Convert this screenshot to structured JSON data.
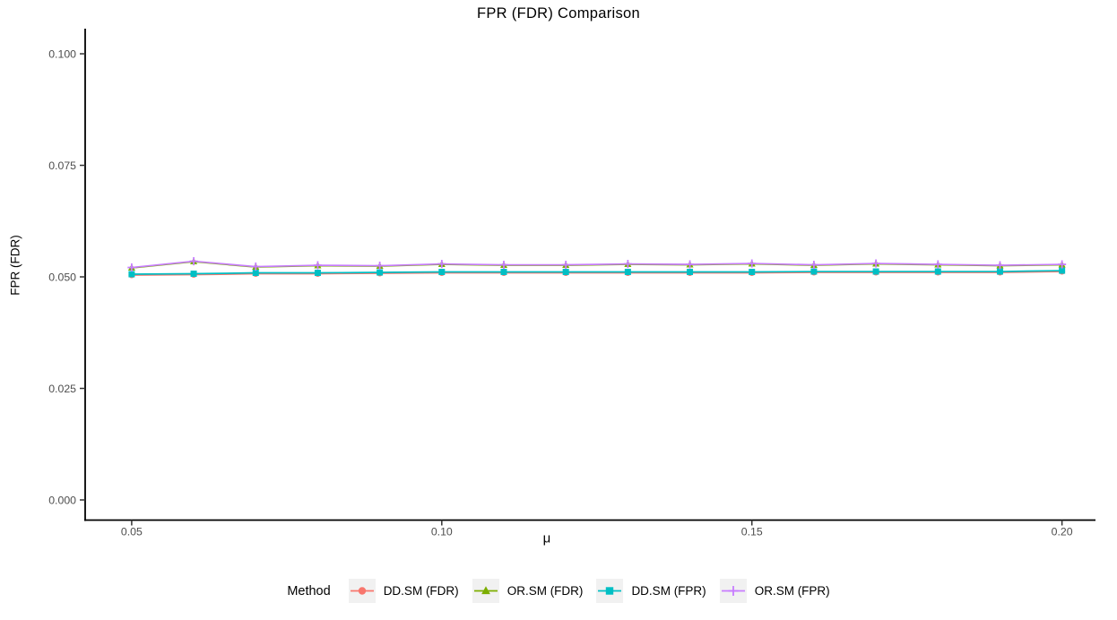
{
  "chart": {
    "title": "FPR (FDR) Comparison",
    "xlabel": "μ",
    "ylabel": "FPR (FDR)"
  },
  "legend": {
    "title": "Method",
    "position": "bottom",
    "key_background": "#F1F1F1",
    "items": [
      {
        "label": "DD.SM (FDR)",
        "color": "#F8766D",
        "shape": "circle"
      },
      {
        "label": "OR.SM (FDR)",
        "color": "#7CAE00",
        "shape": "triangle"
      },
      {
        "label": "DD.SM (FPR)",
        "color": "#00BFC4",
        "shape": "square"
      },
      {
        "label": "OR.SM (FPR)",
        "color": "#C77CFF",
        "shape": "plus"
      }
    ]
  },
  "chart_data": {
    "type": "line",
    "title": "FPR (FDR) Comparison",
    "xlabel": "μ",
    "ylabel": "FPR (FDR)",
    "grid": false,
    "legend_position": "bottom",
    "axis_color": "#000000",
    "tick_color": "#333333",
    "tick_label_color": "#4D4D4D",
    "xlim": [
      0.0425,
      0.2054
    ],
    "ylim": [
      -0.00452,
      0.10563
    ],
    "x_ticks": [
      0.05,
      0.1,
      0.15,
      0.2
    ],
    "x_tick_labels": [
      "0.05",
      "0.10",
      "0.15",
      "0.20"
    ],
    "y_ticks": [
      0.0,
      0.025,
      0.05,
      0.075,
      0.1
    ],
    "y_tick_labels": [
      "0.000",
      "0.025",
      "0.050",
      "0.075",
      "0.100"
    ],
    "x": [
      0.05,
      0.06,
      0.07,
      0.08,
      0.09,
      0.1,
      0.11,
      0.12,
      0.13,
      0.14,
      0.15,
      0.16,
      0.17,
      0.18,
      0.19,
      0.2
    ],
    "series": [
      {
        "name": "DD.SM (FDR)",
        "color": "#F8766D",
        "marker": "circle",
        "values": [
          0.0504,
          0.0505,
          0.0507,
          0.0507,
          0.0508,
          0.0509,
          0.0509,
          0.0509,
          0.0509,
          0.0509,
          0.0509,
          0.051,
          0.051,
          0.051,
          0.051,
          0.0512
        ]
      },
      {
        "name": "OR.SM (FDR)",
        "color": "#7CAE00",
        "marker": "triangle",
        "values": [
          0.052,
          0.0534,
          0.0522,
          0.0525,
          0.0524,
          0.0528,
          0.0526,
          0.0526,
          0.0528,
          0.0527,
          0.0529,
          0.0526,
          0.0529,
          0.0527,
          0.0525,
          0.0527
        ]
      },
      {
        "name": "DD.SM (FPR)",
        "color": "#00BFC4",
        "marker": "square",
        "values": [
          0.0506,
          0.0507,
          0.0509,
          0.0509,
          0.051,
          0.0511,
          0.0511,
          0.0511,
          0.0511,
          0.0511,
          0.0511,
          0.0512,
          0.0512,
          0.0512,
          0.0512,
          0.0514
        ]
      },
      {
        "name": "OR.SM (FPR)",
        "color": "#C77CFF",
        "marker": "plus",
        "values": [
          0.0521,
          0.0535,
          0.0523,
          0.0526,
          0.0525,
          0.0529,
          0.0527,
          0.0527,
          0.0529,
          0.0528,
          0.053,
          0.0527,
          0.053,
          0.0528,
          0.0526,
          0.0528
        ]
      }
    ]
  }
}
